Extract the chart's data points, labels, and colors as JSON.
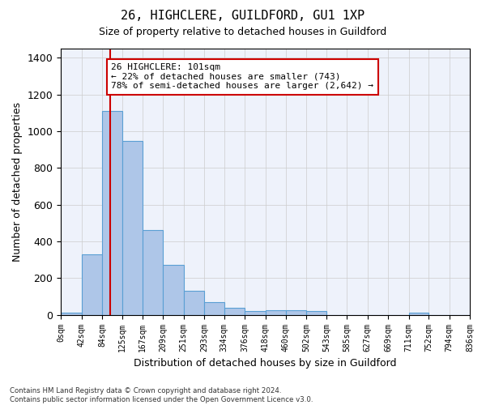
{
  "title": "26, HIGHCLERE, GUILDFORD, GU1 1XP",
  "subtitle": "Size of property relative to detached houses in Guildford",
  "xlabel": "Distribution of detached houses by size in Guildford",
  "ylabel": "Number of detached properties",
  "bin_labels": [
    "0sqm",
    "42sqm",
    "84sqm",
    "125sqm",
    "167sqm",
    "209sqm",
    "251sqm",
    "293sqm",
    "334sqm",
    "376sqm",
    "418sqm",
    "460sqm",
    "502sqm",
    "543sqm",
    "585sqm",
    "627sqm",
    "669sqm",
    "711sqm",
    "752sqm",
    "794sqm",
    "836sqm"
  ],
  "bin_edges": [
    0,
    42,
    84,
    125,
    167,
    209,
    251,
    293,
    334,
    376,
    418,
    460,
    502,
    543,
    585,
    627,
    669,
    711,
    752,
    794,
    836
  ],
  "bar_values": [
    10,
    330,
    1110,
    945,
    460,
    270,
    130,
    68,
    40,
    22,
    25,
    25,
    20,
    0,
    0,
    0,
    0,
    12,
    0,
    0
  ],
  "bar_color": "#aec6e8",
  "bar_edge_color": "#5a9fd4",
  "background_color": "#eef2fb",
  "grid_color": "#cccccc",
  "annotation_text": "26 HIGHCLERE: 101sqm\n← 22% of detached houses are smaller (743)\n78% of semi-detached houses are larger (2,642) →",
  "vline_x": 101,
  "vline_color": "#cc0000",
  "ylim": [
    0,
    1450
  ],
  "yticks": [
    0,
    200,
    400,
    600,
    800,
    1000,
    1200,
    1400
  ],
  "footnote": "Contains HM Land Registry data © Crown copyright and database right 2024.\nContains public sector information licensed under the Open Government Licence v3.0."
}
